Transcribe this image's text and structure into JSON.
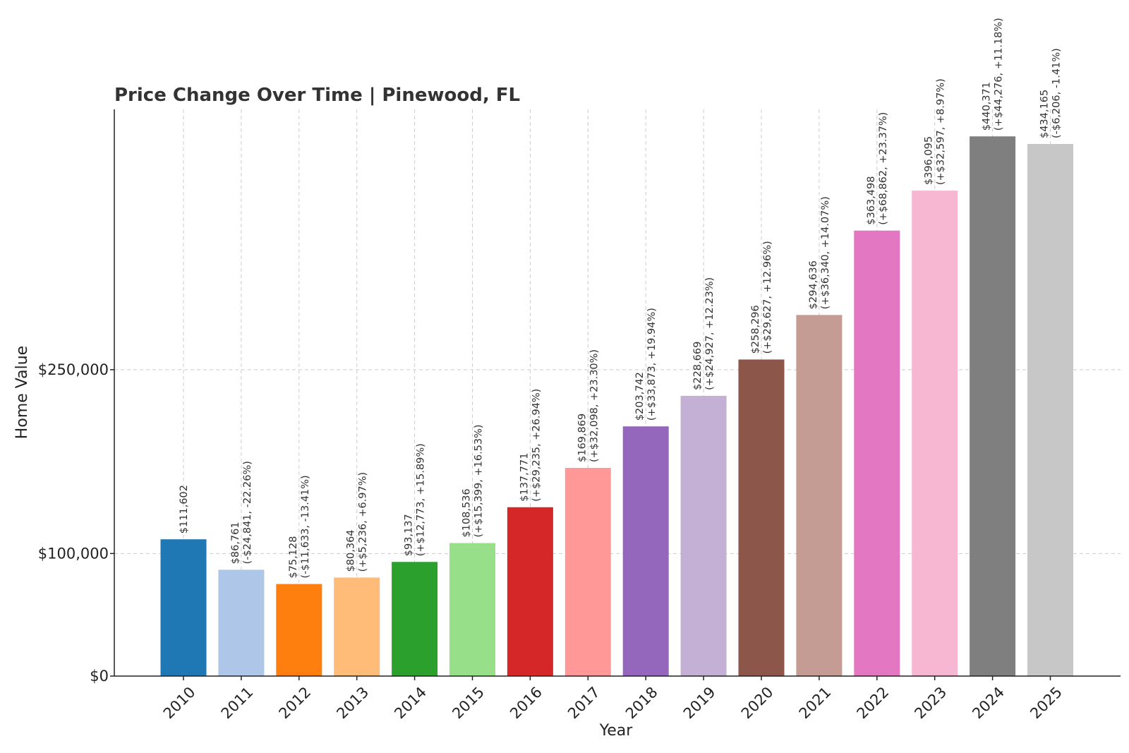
{
  "chart_data": {
    "type": "bar",
    "title": "Price Change Over Time | Pinewood, FL",
    "xlabel": "Year",
    "ylabel": "Home Value",
    "ylim": [
      0,
      462389.55
    ],
    "yticks": [
      0,
      100000,
      250000
    ],
    "ytick_labels": [
      "$0",
      "$100,000",
      "$250,000"
    ],
    "grid": true,
    "categories": [
      "2010",
      "2011",
      "2012",
      "2013",
      "2014",
      "2015",
      "2016",
      "2017",
      "2018",
      "2019",
      "2020",
      "2021",
      "2022",
      "2023",
      "2024",
      "2025"
    ],
    "values": [
      111602,
      86761,
      75128,
      80364,
      93137,
      108536,
      137771,
      169869,
      203742,
      228669,
      258296,
      294636,
      363498,
      396095,
      440371,
      434165
    ],
    "value_labels": [
      "$111,602",
      "$86,761",
      "$75,128",
      "$80,364",
      "$93,137",
      "$108,536",
      "$137,771",
      "$169,869",
      "$203,742",
      "$228,669",
      "$258,296",
      "$294,636",
      "$363,498",
      "$396,095",
      "$440,371",
      "$434,165"
    ],
    "change_labels": [
      "",
      "(-$24,841, -22.26%)",
      "(-$11,633, -13.41%)",
      "(+$5,236, +6.97%)",
      "(+$12,773, +15.89%)",
      "(+$15,399, +16.53%)",
      "(+$29,235, +26.94%)",
      "(+$32,098, +23.30%)",
      "(+$33,873, +19.94%)",
      "(+$24,927, +12.23%)",
      "(+$29,627, +12.96%)",
      "(+$36,340, +14.07%)",
      "(+$68,862, +23.37%)",
      "(+$32,597, +8.97%)",
      "(+$44,276, +11.18%)",
      "(-$6,206, -1.41%)"
    ],
    "colors": [
      "#1f77b4",
      "#aec7e8",
      "#ff7f0e",
      "#ffbb78",
      "#2ca02c",
      "#98df8a",
      "#d62728",
      "#ff9896",
      "#9467bd",
      "#c5b0d5",
      "#8c564b",
      "#c49c94",
      "#e377c2",
      "#f7b6d2",
      "#7f7f7f",
      "#c7c7c7"
    ]
  }
}
